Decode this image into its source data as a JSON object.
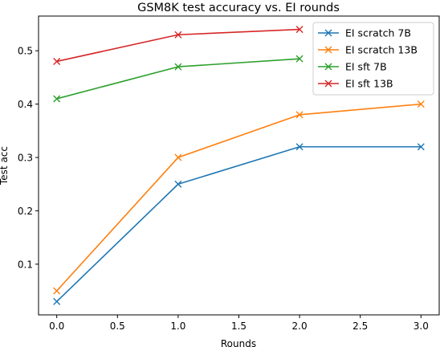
{
  "chart_data": {
    "type": "line",
    "title": "GSM8K test accuracy vs. EI rounds",
    "xlabel": "Rounds",
    "ylabel": "Test acc",
    "xlim": [
      -0.15,
      3.15
    ],
    "ylim": [
      0.005,
      0.565
    ],
    "xticks": [
      0.0,
      0.5,
      1.0,
      1.5,
      2.0,
      2.5,
      3.0
    ],
    "yticks": [
      0.1,
      0.2,
      0.3,
      0.4,
      0.5
    ],
    "xtick_labels": [
      "0.0",
      "0.5",
      "1.0",
      "1.5",
      "2.0",
      "2.5",
      "3.0"
    ],
    "ytick_labels": [
      "0.1",
      "0.2",
      "0.3",
      "0.4",
      "0.5"
    ],
    "grid": false,
    "legend_position": "top-right",
    "marker": "x",
    "series": [
      {
        "name": "EI scratch 7B",
        "color": "#1f77b4",
        "x": [
          0,
          1,
          2,
          3
        ],
        "y": [
          0.03,
          0.25,
          0.32,
          0.32
        ]
      },
      {
        "name": "EI scratch 13B",
        "color": "#ff7f0e",
        "x": [
          0,
          1,
          2,
          3
        ],
        "y": [
          0.05,
          0.3,
          0.38,
          0.4
        ]
      },
      {
        "name": "EI sft 7B",
        "color": "#2ca02c",
        "x": [
          0,
          1,
          2
        ],
        "y": [
          0.41,
          0.47,
          0.485
        ]
      },
      {
        "name": "EI sft 13B",
        "color": "#d62728",
        "x": [
          0,
          1,
          2
        ],
        "y": [
          0.48,
          0.53,
          0.54
        ]
      }
    ]
  }
}
